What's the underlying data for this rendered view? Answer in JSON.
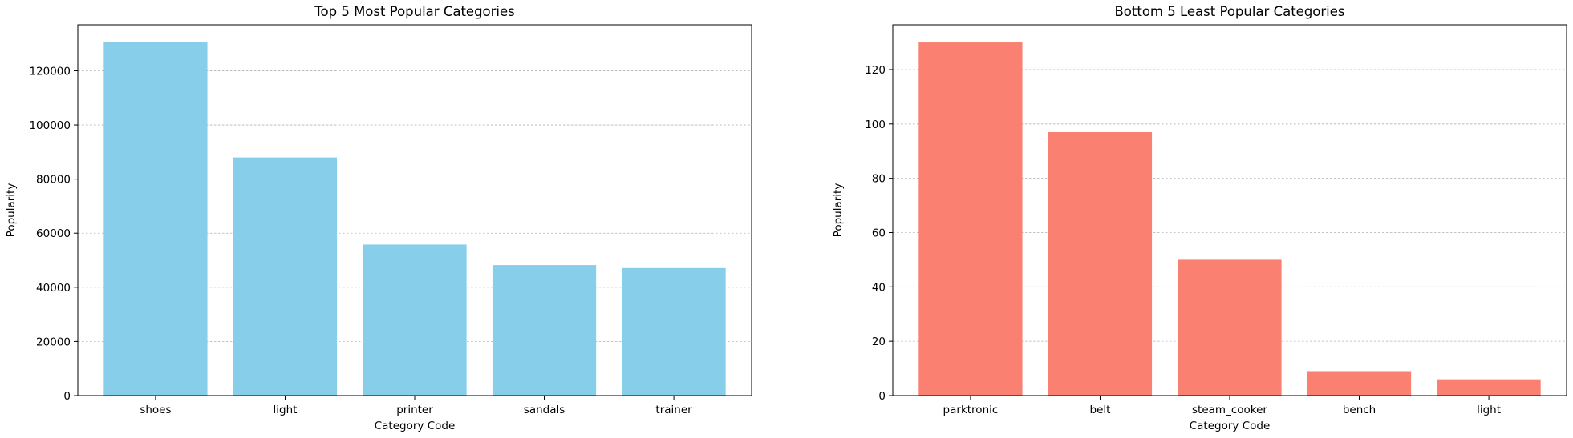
{
  "chart_data": [
    {
      "type": "bar",
      "title": "Top 5 Most Popular Categories",
      "xlabel": "Category Code",
      "ylabel": "Popularity",
      "categories": [
        "shoes",
        "light",
        "printer",
        "sandals",
        "trainer"
      ],
      "values": [
        130500,
        88000,
        55800,
        48200,
        47100
      ],
      "ylim": [
        0,
        137000
      ],
      "yticks": [
        0,
        20000,
        40000,
        60000,
        80000,
        100000,
        120000
      ],
      "ytick_labels": [
        "0",
        "20000",
        "40000",
        "60000",
        "80000",
        "100000",
        "120000"
      ],
      "color": "#87ceeb",
      "grid": "y-dashed"
    },
    {
      "type": "bar",
      "title": "Bottom 5 Least Popular Categories",
      "xlabel": "Category Code",
      "ylabel": "Popularity",
      "categories": [
        "parktronic",
        "belt",
        "steam_cooker",
        "bench",
        "light"
      ],
      "values": [
        130,
        97,
        50,
        9,
        6
      ],
      "ylim": [
        0,
        136.5
      ],
      "yticks": [
        0,
        20,
        40,
        60,
        80,
        100,
        120
      ],
      "ytick_labels": [
        "0",
        "20",
        "40",
        "60",
        "80",
        "100",
        "120"
      ],
      "color": "#fa8072",
      "grid": "y-dashed"
    }
  ]
}
